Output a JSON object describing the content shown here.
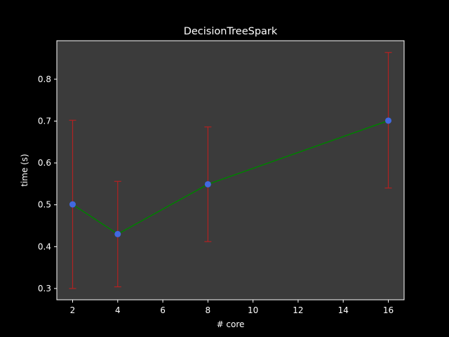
{
  "chart_data": {
    "type": "line",
    "title": "DecisionTreeSpark",
    "xlabel": "# core",
    "ylabel": "time (s)",
    "x": [
      2,
      4,
      8,
      16
    ],
    "series": [
      {
        "values": [
          0.501,
          0.43,
          0.549,
          0.701
        ],
        "error_low": [
          0.3,
          0.304,
          0.412,
          0.54
        ],
        "error_high": [
          0.702,
          0.556,
          0.686,
          0.864
        ]
      }
    ],
    "xlim": [
      1.3,
      16.7
    ],
    "ylim": [
      0.273,
      0.892
    ],
    "xticks": [
      2,
      4,
      6,
      8,
      10,
      12,
      14,
      16
    ],
    "yticks": [
      0.3,
      0.4,
      0.5,
      0.6,
      0.7,
      0.8
    ],
    "grid": false,
    "colors": {
      "figure_bg": "#000000",
      "plot_bg": "#3b3b3b",
      "line": "#008000",
      "marker": "#4169e1",
      "error_bar": "#b22222",
      "axis": "#ffffff"
    }
  }
}
